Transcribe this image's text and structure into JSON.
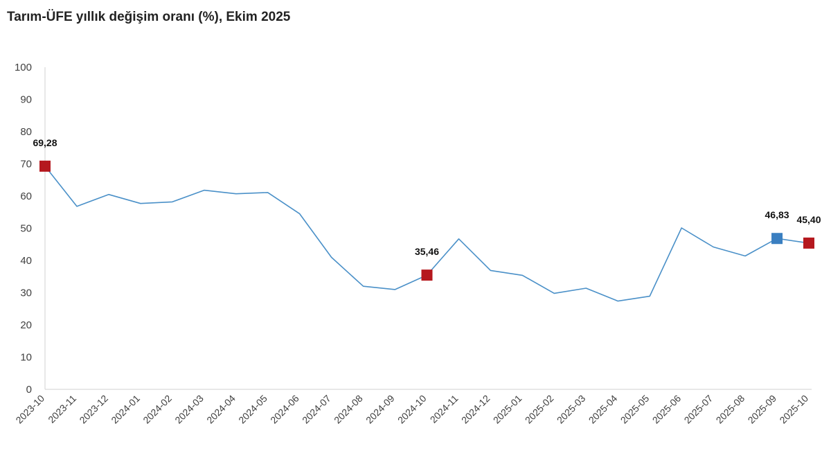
{
  "chart_data": {
    "type": "line",
    "title": "Tarım-ÜFE yıllık değişim oranı (%), Ekim 2025",
    "xlabel": "",
    "ylabel": "",
    "ylim": [
      0,
      100
    ],
    "yticks": [
      "0",
      "10",
      "20",
      "30",
      "40",
      "50",
      "60",
      "70",
      "80",
      "90",
      "100"
    ],
    "categories": [
      "2023-10",
      "2023-11",
      "2023-12",
      "2024-01",
      "2024-02",
      "2024-03",
      "2024-04",
      "2024-05",
      "2024-06",
      "2024-07",
      "2024-08",
      "2024-09",
      "2024-10",
      "2024-11",
      "2024-12",
      "2025-01",
      "2025-02",
      "2025-03",
      "2025-04",
      "2025-05",
      "2025-06",
      "2025-07",
      "2025-08",
      "2025-09",
      "2025-10"
    ],
    "series": [
      {
        "color": "#4a90c8",
        "values": [
          69.28,
          56.8,
          60.5,
          57.7,
          58.2,
          61.8,
          60.7,
          61.1,
          54.5,
          41.0,
          32.0,
          31.0,
          35.46,
          46.7,
          36.9,
          35.4,
          29.8,
          31.4,
          27.4,
          28.9,
          50.1,
          44.2,
          41.4,
          46.83,
          45.4
        ]
      }
    ],
    "highlighted_points": [
      {
        "index": 0,
        "label": "69,28",
        "color": "#b5181e"
      },
      {
        "index": 12,
        "label": "35,46",
        "color": "#b5181e"
      },
      {
        "index": 23,
        "label": "46,83",
        "color": "#3a7fc1"
      },
      {
        "index": 24,
        "label": "45,40",
        "color": "#b5181e"
      }
    ],
    "grid": false,
    "legend": "none"
  }
}
